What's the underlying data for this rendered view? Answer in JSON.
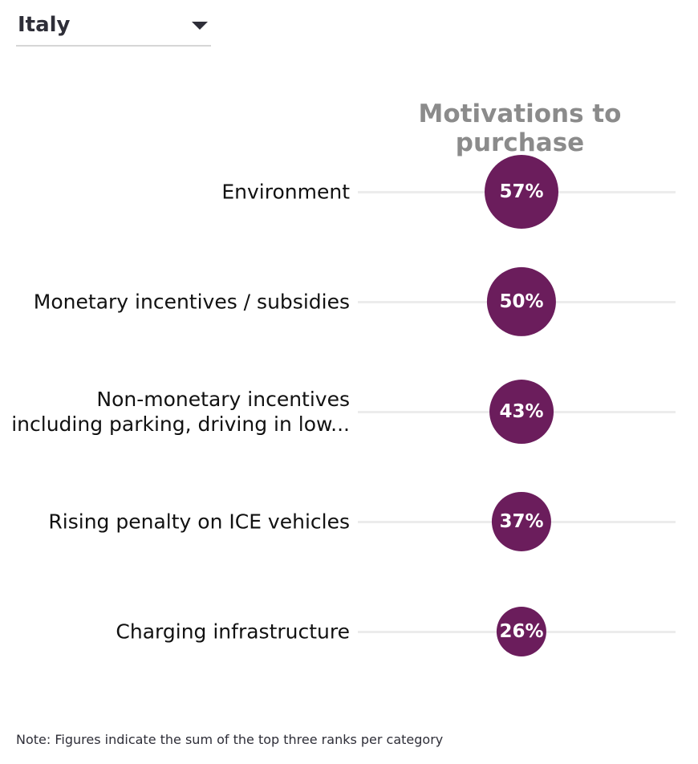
{
  "filter": {
    "selected": "Italy"
  },
  "chart_data": {
    "type": "bubble",
    "title": "Motivations to purchase",
    "categories": [
      "Environment",
      "Monetary incentives / subsidies",
      "Non-monetary incentives including parking, driving in low...",
      "Rising penalty on ICE vehicles",
      "Charging infrastructure"
    ],
    "label_lines": [
      [
        "Environment"
      ],
      [
        "Monetary incentives / subsidies"
      ],
      [
        "Non-monetary incentives",
        "including parking, driving in low..."
      ],
      [
        "Rising penalty on ICE vehicles"
      ],
      [
        "Charging infrastructure"
      ]
    ],
    "values": [
      57,
      50,
      43,
      37,
      26
    ],
    "value_labels": [
      "57%",
      "50%",
      "43%",
      "37%",
      "26%"
    ],
    "colors": {
      "bubble": "#6b1d5c",
      "track": "#ececec",
      "title": "#8b8b8b"
    }
  },
  "note": "Note: Figures indicate the sum of the top three ranks per category"
}
